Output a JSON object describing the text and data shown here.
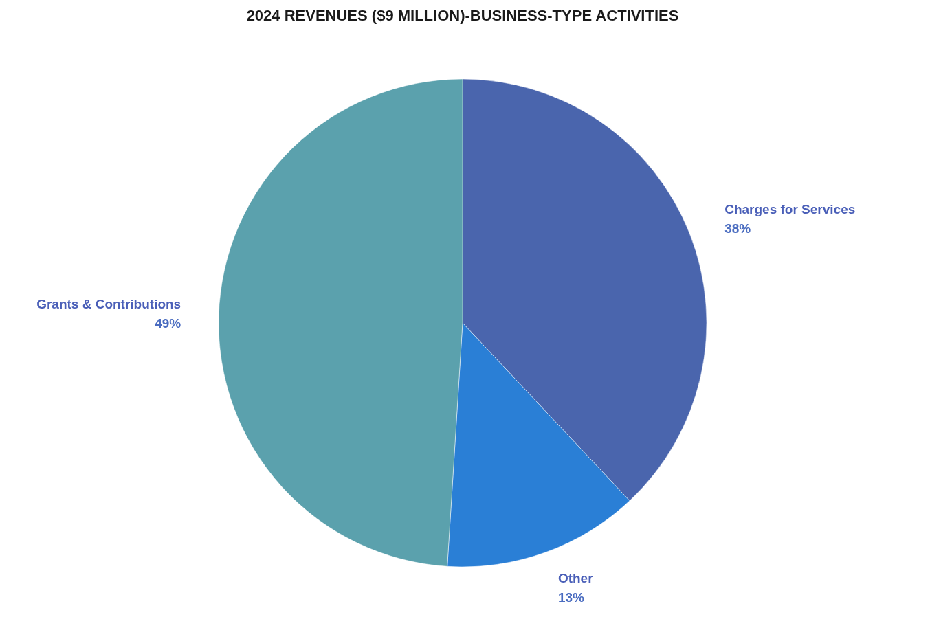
{
  "chart_data": {
    "type": "pie",
    "title": "2024 REVENUES ($9 MILLION)-BUSINESS-TYPE ACTIVITIES",
    "categories": [
      "Charges for Services",
      "Other",
      "Grants & Contributions"
    ],
    "values": [
      38,
      13,
      49
    ],
    "value_labels": [
      "38%",
      "13%",
      "49%"
    ],
    "colors": [
      "#4a65ad",
      "#2a7fd6",
      "#5ba1ad"
    ]
  }
}
